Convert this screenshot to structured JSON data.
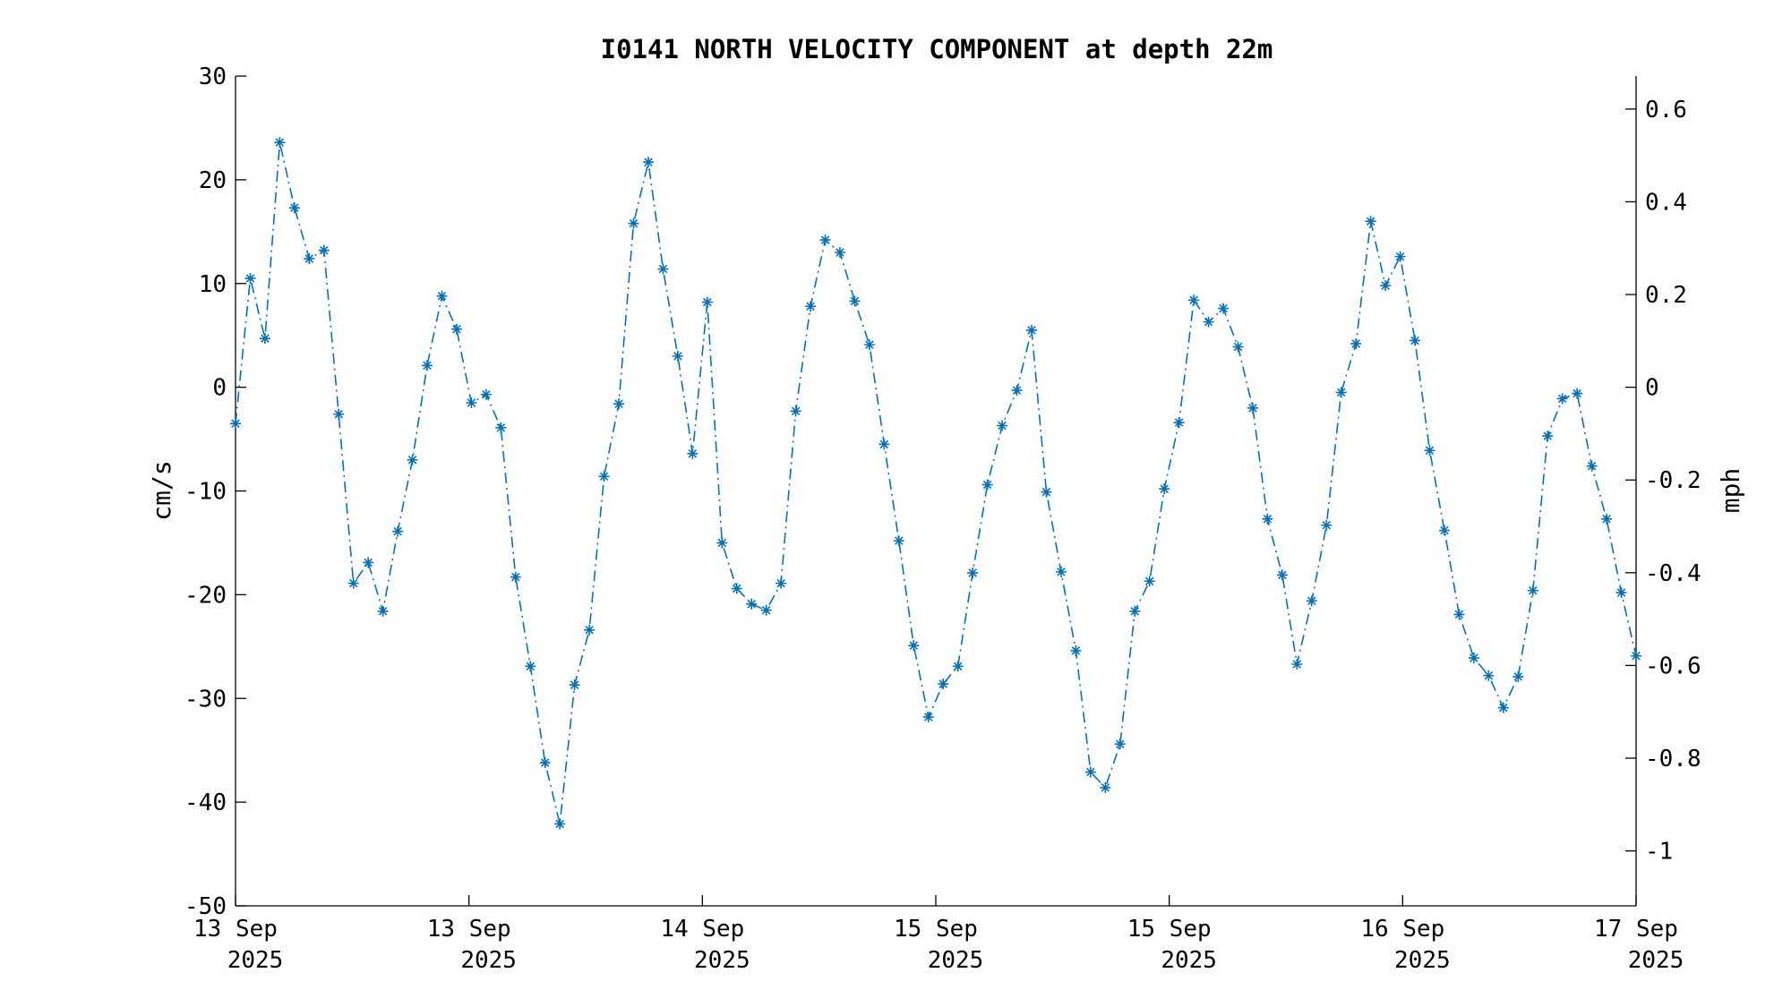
{
  "chart_data": {
    "type": "line",
    "title": "I0141 NORTH VELOCITY COMPONENT at depth 22m",
    "xlabel": "",
    "ylabel": "cm/s",
    "ylabel_right": "mph",
    "ylim": [
      -50,
      30
    ],
    "ylim_right_mph": [
      -1.118,
      0.671
    ],
    "yticks": [
      "30",
      "20",
      "10",
      "0",
      "-10",
      "-20",
      "-30",
      "-40",
      "-50"
    ],
    "yticks_right": [
      "0.6",
      "0.4",
      "0.2",
      "0",
      "-0.2",
      "-0.4",
      "-0.6",
      "-0.8",
      "-1"
    ],
    "xticks": [
      {
        "line1": "13 Sep",
        "line2": "2025"
      },
      {
        "line1": "13 Sep",
        "line2": "2025"
      },
      {
        "line1": "14 Sep",
        "line2": "2025"
      },
      {
        "line1": "15 Sep",
        "line2": "2025"
      },
      {
        "line1": "15 Sep",
        "line2": "2025"
      },
      {
        "line1": "16 Sep",
        "line2": "2025"
      },
      {
        "line1": "17 Sep",
        "line2": "2025"
      }
    ],
    "grid": false,
    "color": "#0072BD",
    "series": [
      {
        "values": [
          -3.5,
          10.5,
          4.7,
          23.6,
          17.3,
          12.4,
          13.2,
          -2.6,
          -18.9,
          -16.9,
          -21.6,
          -13.9,
          -7.0,
          2.1,
          8.8,
          5.6,
          -1.5,
          -0.7,
          -3.9,
          -18.3,
          -26.9,
          -36.2,
          -42.1,
          -28.7,
          -23.4,
          -8.6,
          -1.6,
          15.8,
          21.7,
          11.4,
          3.0,
          -6.4,
          8.2,
          -15.0,
          -19.4,
          -20.9,
          -21.5,
          -18.9,
          -2.3,
          7.8,
          14.2,
          13.0,
          8.3,
          4.1,
          -5.5,
          -14.8,
          -24.9,
          -31.8,
          -28.6,
          -26.9,
          -17.9,
          -9.4,
          -3.7,
          -0.3,
          5.5,
          -10.1,
          -17.8,
          -25.4,
          -37.1,
          -38.6,
          -34.4,
          -21.6,
          -18.7,
          -9.8,
          -3.4,
          8.4,
          6.3,
          7.6,
          3.9,
          -2.0,
          -12.7,
          -18.1,
          -26.7,
          -20.6,
          -13.3,
          -0.5,
          4.2,
          16.0,
          9.8,
          12.6,
          4.5,
          -6.1,
          -13.8,
          -21.9,
          -26.1,
          -27.8,
          -30.9,
          -27.9,
          -19.6,
          -4.7,
          -1.1,
          -0.6,
          -7.6,
          -12.7,
          -19.8,
          -25.9
        ]
      }
    ]
  }
}
